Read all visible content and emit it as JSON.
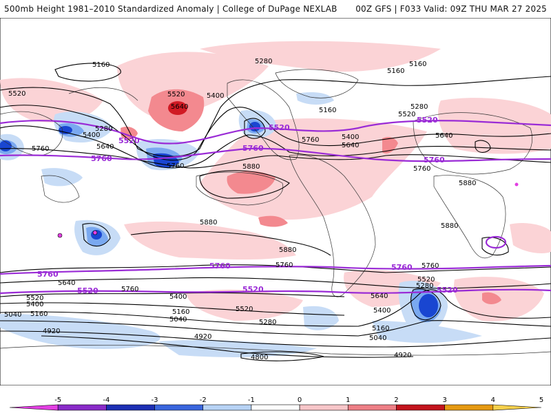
{
  "header": {
    "left_title": "500mb Height 1981–2010 Standardized Anomaly | College of DuPage NEXLAB",
    "right_title": "00Z GFS | F033 Valid: 09Z THU MAR 27 2025"
  },
  "contour_labels": [
    "5160",
    "5280",
    "5160",
    "5160",
    "5520",
    "5520",
    "5400",
    "5640",
    "5280",
    "5400",
    "5640",
    "5760",
    "5760",
    "5160",
    "5520",
    "5760",
    "5640",
    "5400",
    "5280",
    "5640",
    "5760",
    "5880",
    "5880",
    "5880",
    "5880",
    "5760",
    "5640",
    "5520",
    "5400",
    "5160",
    "5040",
    "4920",
    "5760",
    "5520",
    "5400",
    "5280",
    "5160",
    "5040",
    "4920",
    "4800",
    "5520",
    "5400",
    "5640",
    "5280",
    "5160",
    "5040",
    "4920",
    "5760",
    "5880"
  ],
  "purple_labels": [
    "5520",
    "5520",
    "5520",
    "5760",
    "5760",
    "5760",
    "5760",
    "5520",
    "5520",
    "5760",
    "5760",
    "5520"
  ],
  "colors": {
    "anom_pos_1": "#fbd3d6",
    "anom_pos_2": "#f3898f",
    "anom_pos_3": "#d11a24",
    "anom_neg_1": "#c7dcf6",
    "anom_neg_2": "#7aa9f0",
    "anom_neg_3": "#1946d1",
    "purple": "#9a2bd6",
    "coast": "#333333"
  },
  "legend": {
    "ticks": [
      "-5",
      "-4",
      "-3",
      "-2",
      "-1",
      "0",
      "1",
      "2",
      "3",
      "4",
      "5"
    ],
    "colors": [
      "#e23fe2",
      "#8a2bc9",
      "#1d2fb4",
      "#3a66de",
      "#b7d3f5",
      "#ffffff",
      "#f7c6c9",
      "#ee7f86",
      "#c3141d",
      "#e69a12",
      "#f6d04b"
    ]
  }
}
